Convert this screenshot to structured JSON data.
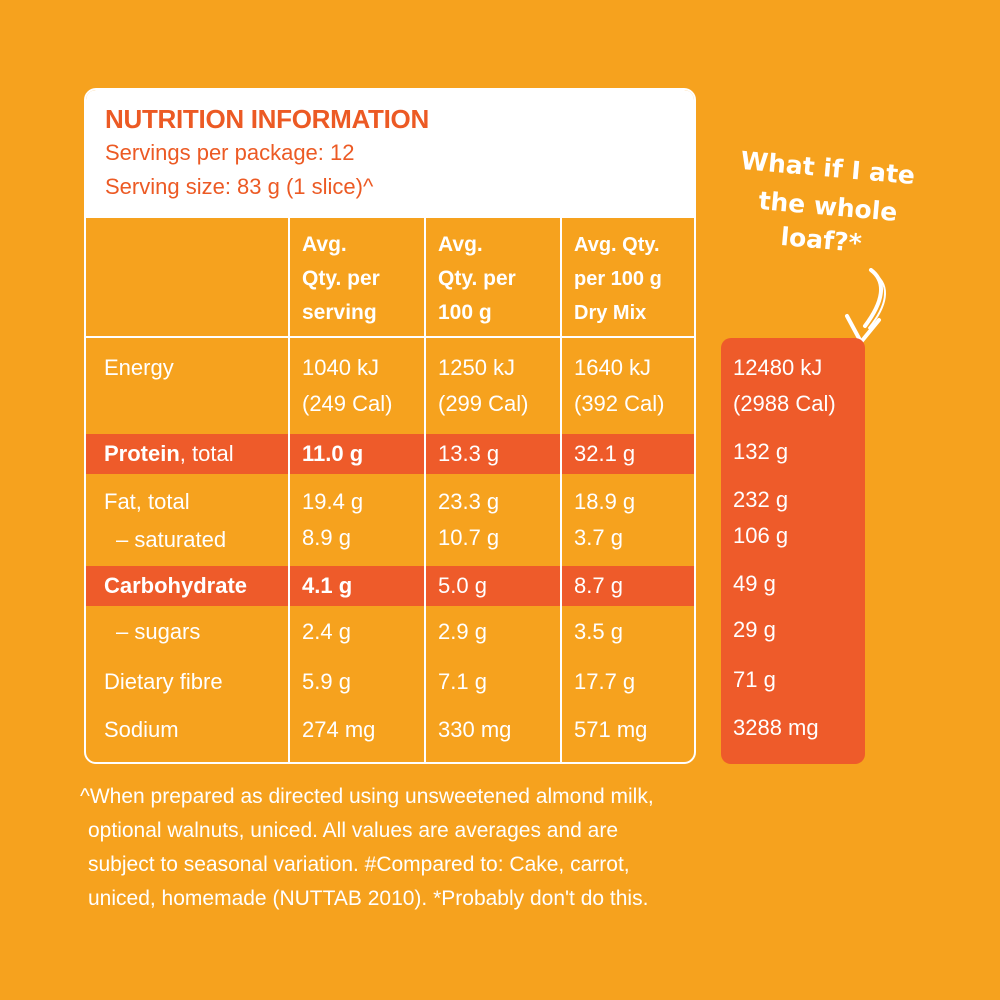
{
  "colors": {
    "background": "#F6A21E",
    "accent": "#EE5B2A",
    "panel": "#FFFFFF",
    "title": "#EC5A24"
  },
  "title": "NUTRITION INFORMATION",
  "servings": "Servings per package: 12",
  "serving_size": "Serving size: 83 g (1 slice)^",
  "columns": [
    [
      "Avg.",
      "Qty. per",
      "serving"
    ],
    [
      "Avg.",
      "Qty. per",
      "100 g"
    ],
    [
      "Avg. Qty.",
      "per 100 g",
      "Dry Mix"
    ]
  ],
  "rows": {
    "energy": {
      "label": "Energy",
      "serving": [
        "1040 kJ",
        "(249 Cal)"
      ],
      "per100": [
        "1250 kJ",
        "(299 Cal)"
      ],
      "dry": [
        "1640 kJ",
        "(392 Cal)"
      ],
      "loaf": [
        "12480 kJ",
        "(2988 Cal)"
      ]
    },
    "protein": {
      "label_bold": "Protein",
      "label_rest": ", total",
      "serving": "11.0 g",
      "per100": "13.3 g",
      "dry": "32.1 g",
      "loaf": "132 g"
    },
    "fat": {
      "label": "Fat, total",
      "serving": "19.4 g",
      "per100": "23.3 g",
      "dry": "18.9 g",
      "loaf": "232 g"
    },
    "saturated": {
      "label": "–  saturated",
      "serving": "8.9 g",
      "per100": "10.7 g",
      "dry": "3.7 g",
      "loaf": "106 g"
    },
    "carbohydrate": {
      "label": "Carbohydrate",
      "serving": "4.1 g",
      "per100": "5.0 g",
      "dry": "8.7 g",
      "loaf": "49 g"
    },
    "sugars": {
      "label": "–  sugars",
      "serving": "2.4 g",
      "per100": "2.9 g",
      "dry": "3.5 g",
      "loaf": "29 g"
    },
    "fibre": {
      "label": "Dietary fibre",
      "serving": "5.9 g",
      "per100": "7.1 g",
      "dry": "17.7 g",
      "loaf": "71 g"
    },
    "sodium": {
      "label": "Sodium",
      "serving": "274 mg",
      "per100": "330 mg",
      "dry": "571 mg",
      "loaf": "3288 mg"
    }
  },
  "loaf_note": [
    "What if I ate",
    "the whole",
    "loaf?*"
  ],
  "footnote": [
    "^When prepared as directed using unsweetened almond milk,",
    "optional walnuts, uniced. All values are averages and are",
    "subject to seasonal variation. #Compared to: Cake, carrot,",
    "uniced, homemade (NUTTAB 2010). *Probably don't do this."
  ],
  "icons": {
    "arrow": "curved-arrow-down-icon"
  }
}
